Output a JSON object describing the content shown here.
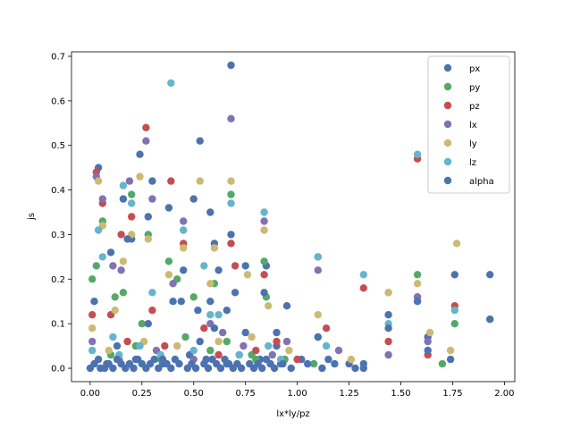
{
  "chart_data": {
    "type": "scatter",
    "title": "",
    "xlabel": "lx*ly/pz",
    "ylabel": "js",
    "xlim": [
      -0.09,
      2.05
    ],
    "ylim": [
      -0.03,
      0.71
    ],
    "xticks": [
      "0.00",
      "0.25",
      "0.50",
      "0.75",
      "1.00",
      "1.25",
      "1.50",
      "1.75",
      "2.00"
    ],
    "yticks": [
      "0.0",
      "0.1",
      "0.2",
      "0.3",
      "0.4",
      "0.5",
      "0.6",
      "0.7"
    ],
    "grid": false,
    "legend_position": "upper right",
    "series": [
      {
        "name": "px",
        "color": "#4C72B0",
        "points": [
          [
            0.02,
            0.15
          ],
          [
            0.04,
            0.45
          ],
          [
            0.05,
            0.0
          ],
          [
            0.1,
            0.26
          ],
          [
            0.13,
            0.05
          ],
          [
            0.16,
            0.38
          ],
          [
            0.2,
            0.29
          ],
          [
            0.24,
            0.48
          ],
          [
            0.28,
            0.34
          ],
          [
            0.3,
            0.42
          ],
          [
            0.38,
            0.36
          ],
          [
            0.4,
            0.15
          ],
          [
            0.45,
            0.22
          ],
          [
            0.5,
            0.38
          ],
          [
            0.53,
            0.51
          ],
          [
            0.58,
            0.35
          ],
          [
            0.6,
            0.28
          ],
          [
            0.62,
            0.22
          ],
          [
            0.68,
            0.68
          ],
          [
            0.7,
            0.17
          ],
          [
            0.75,
            0.23
          ],
          [
            0.85,
            0.23
          ],
          [
            0.9,
            0.05
          ],
          [
            0.95,
            0.14
          ],
          [
            1.1,
            0.25
          ],
          [
            1.15,
            0.02
          ],
          [
            1.32,
            0.01
          ],
          [
            1.44,
            0.12
          ],
          [
            1.58,
            0.16
          ],
          [
            1.63,
            0.07
          ],
          [
            1.76,
            0.21
          ],
          [
            1.93,
            0.21
          ],
          [
            0.08,
            0.01
          ],
          [
            0.22,
            0.02
          ],
          [
            0.35,
            0.01
          ],
          [
            0.48,
            0.03
          ],
          [
            0.56,
            0.02
          ],
          [
            0.66,
            0.01
          ],
          [
            0.72,
            0.03
          ],
          [
            0.82,
            0.02
          ],
          [
            0.92,
            0.01
          ],
          [
            1.02,
            0.02
          ],
          [
            1.25,
            0.01
          ]
        ]
      },
      {
        "name": "py",
        "color": "#55A868",
        "points": [
          [
            0.01,
            0.2
          ],
          [
            0.03,
            0.23
          ],
          [
            0.06,
            0.33
          ],
          [
            0.12,
            0.16
          ],
          [
            0.16,
            0.17
          ],
          [
            0.2,
            0.39
          ],
          [
            0.25,
            0.1
          ],
          [
            0.28,
            0.3
          ],
          [
            0.38,
            0.24
          ],
          [
            0.42,
            0.2
          ],
          [
            0.5,
            0.16
          ],
          [
            0.6,
            0.19
          ],
          [
            0.68,
            0.39
          ],
          [
            0.78,
            0.03
          ],
          [
            0.84,
            0.24
          ],
          [
            0.85,
            0.16
          ],
          [
            1.1,
            0.07
          ],
          [
            1.44,
            0.17
          ],
          [
            1.58,
            0.21
          ],
          [
            1.7,
            0.01
          ],
          [
            1.76,
            0.1
          ],
          [
            0.1,
            0.03
          ],
          [
            0.22,
            0.05
          ],
          [
            0.34,
            0.02
          ],
          [
            0.46,
            0.07
          ],
          [
            0.58,
            0.04
          ],
          [
            0.66,
            0.06
          ],
          [
            0.8,
            0.02
          ],
          [
            0.94,
            0.02
          ],
          [
            1.08,
            0.01
          ]
        ]
      },
      {
        "name": "pz",
        "color": "#C44E52",
        "points": [
          [
            0.01,
            0.12
          ],
          [
            0.03,
            0.44
          ],
          [
            0.06,
            0.37
          ],
          [
            0.1,
            0.12
          ],
          [
            0.15,
            0.3
          ],
          [
            0.2,
            0.34
          ],
          [
            0.27,
            0.54
          ],
          [
            0.3,
            0.13
          ],
          [
            0.39,
            0.42
          ],
          [
            0.45,
            0.28
          ],
          [
            0.55,
            0.09
          ],
          [
            0.68,
            0.28
          ],
          [
            0.7,
            0.23
          ],
          [
            0.84,
            0.21
          ],
          [
            0.9,
            0.06
          ],
          [
            1.14,
            0.09
          ],
          [
            1.32,
            0.18
          ],
          [
            1.44,
            0.06
          ],
          [
            1.58,
            0.47
          ],
          [
            1.63,
            0.03
          ],
          [
            1.76,
            0.14
          ],
          [
            0.18,
            0.06
          ],
          [
            0.36,
            0.05
          ],
          [
            0.62,
            0.03
          ],
          [
            0.8,
            0.04
          ],
          [
            1.0,
            0.02
          ]
        ]
      },
      {
        "name": "lx",
        "color": "#8172B2",
        "points": [
          [
            0.01,
            0.06
          ],
          [
            0.03,
            0.43
          ],
          [
            0.06,
            0.38
          ],
          [
            0.11,
            0.23
          ],
          [
            0.15,
            0.22
          ],
          [
            0.19,
            0.42
          ],
          [
            0.27,
            0.51
          ],
          [
            0.3,
            0.38
          ],
          [
            0.4,
            0.19
          ],
          [
            0.45,
            0.33
          ],
          [
            0.58,
            0.1
          ],
          [
            0.64,
            0.08
          ],
          [
            0.68,
            0.56
          ],
          [
            0.84,
            0.33
          ],
          [
            0.95,
            0.06
          ],
          [
            1.1,
            0.22
          ],
          [
            1.2,
            0.04
          ],
          [
            1.44,
            0.03
          ],
          [
            1.58,
            0.16
          ],
          [
            1.63,
            0.06
          ],
          [
            0.14,
            0.02
          ],
          [
            0.32,
            0.04
          ],
          [
            0.5,
            0.02
          ],
          [
            0.74,
            0.05
          ],
          [
            0.88,
            0.03
          ]
        ]
      },
      {
        "name": "ly",
        "color": "#CCB974",
        "points": [
          [
            0.01,
            0.09
          ],
          [
            0.04,
            0.42
          ],
          [
            0.06,
            0.32
          ],
          [
            0.12,
            0.13
          ],
          [
            0.16,
            0.24
          ],
          [
            0.2,
            0.3
          ],
          [
            0.24,
            0.43
          ],
          [
            0.28,
            0.29
          ],
          [
            0.38,
            0.21
          ],
          [
            0.45,
            0.27
          ],
          [
            0.53,
            0.42
          ],
          [
            0.58,
            0.19
          ],
          [
            0.6,
            0.27
          ],
          [
            0.68,
            0.42
          ],
          [
            0.76,
            0.21
          ],
          [
            0.84,
            0.31
          ],
          [
            0.86,
            0.14
          ],
          [
            1.1,
            0.12
          ],
          [
            1.26,
            0.02
          ],
          [
            1.44,
            0.17
          ],
          [
            1.58,
            0.19
          ],
          [
            1.64,
            0.08
          ],
          [
            1.74,
            0.04
          ],
          [
            1.77,
            0.28
          ],
          [
            1.93,
            0.11
          ],
          [
            0.09,
            0.04
          ],
          [
            0.26,
            0.06
          ],
          [
            0.42,
            0.05
          ],
          [
            0.62,
            0.06
          ],
          [
            0.78,
            0.07
          ],
          [
            0.96,
            0.04
          ]
        ]
      },
      {
        "name": "lz",
        "color": "#64B5CD",
        "points": [
          [
            0.01,
            0.04
          ],
          [
            0.04,
            0.31
          ],
          [
            0.06,
            0.25
          ],
          [
            0.11,
            0.07
          ],
          [
            0.16,
            0.41
          ],
          [
            0.2,
            0.37
          ],
          [
            0.24,
            0.05
          ],
          [
            0.3,
            0.17
          ],
          [
            0.39,
            0.64
          ],
          [
            0.45,
            0.31
          ],
          [
            0.55,
            0.23
          ],
          [
            0.58,
            0.12
          ],
          [
            0.62,
            0.12
          ],
          [
            0.68,
            0.37
          ],
          [
            0.84,
            0.35
          ],
          [
            0.86,
            0.05
          ],
          [
            1.1,
            0.25
          ],
          [
            1.14,
            0.05
          ],
          [
            1.32,
            0.21
          ],
          [
            1.44,
            0.1
          ],
          [
            1.58,
            0.48
          ],
          [
            1.76,
            0.13
          ],
          [
            0.14,
            0.03
          ],
          [
            0.34,
            0.03
          ],
          [
            0.5,
            0.04
          ],
          [
            0.72,
            0.03
          ],
          [
            0.92,
            0.02
          ]
        ]
      },
      {
        "name": "alpha",
        "color": "#4C72B0",
        "points": [
          [
            0.0,
            0.0
          ],
          [
            0.02,
            0.01
          ],
          [
            0.04,
            0.02
          ],
          [
            0.07,
            0.0
          ],
          [
            0.09,
            0.01
          ],
          [
            0.11,
            0.0
          ],
          [
            0.13,
            0.02
          ],
          [
            0.15,
            0.01
          ],
          [
            0.17,
            0.0
          ],
          [
            0.19,
            0.01
          ],
          [
            0.21,
            0.0
          ],
          [
            0.23,
            0.02
          ],
          [
            0.25,
            0.01
          ],
          [
            0.27,
            0.0
          ],
          [
            0.29,
            0.01
          ],
          [
            0.31,
            0.02
          ],
          [
            0.33,
            0.0
          ],
          [
            0.37,
            0.01
          ],
          [
            0.39,
            0.0
          ],
          [
            0.41,
            0.02
          ],
          [
            0.43,
            0.01
          ],
          [
            0.47,
            0.0
          ],
          [
            0.49,
            0.01
          ],
          [
            0.51,
            0.0
          ],
          [
            0.55,
            0.01
          ],
          [
            0.57,
            0.0
          ],
          [
            0.59,
            0.02
          ],
          [
            0.61,
            0.01
          ],
          [
            0.63,
            0.0
          ],
          [
            0.65,
            0.02
          ],
          [
            0.67,
            0.01
          ],
          [
            0.69,
            0.0
          ],
          [
            0.71,
            0.01
          ],
          [
            0.73,
            0.0
          ],
          [
            0.77,
            0.01
          ],
          [
            0.79,
            0.0
          ],
          [
            0.81,
            0.01
          ],
          [
            0.83,
            0.0
          ],
          [
            0.85,
            0.02
          ],
          [
            0.87,
            0.01
          ],
          [
            0.89,
            0.0
          ],
          [
            0.93,
            0.01
          ],
          [
            0.97,
            0.0
          ],
          [
            1.05,
            0.01
          ],
          [
            1.12,
            0.0
          ],
          [
            1.18,
            0.01
          ],
          [
            1.28,
            0.0
          ],
          [
            1.32,
            0.0
          ],
          [
            1.44,
            0.09
          ],
          [
            1.58,
            0.15
          ],
          [
            1.63,
            0.04
          ],
          [
            1.74,
            0.02
          ],
          [
            1.93,
            0.11
          ],
          [
            0.18,
            0.29
          ],
          [
            0.28,
            0.1
          ],
          [
            0.44,
            0.15
          ],
          [
            0.52,
            0.13
          ],
          [
            0.58,
            0.15
          ],
          [
            0.6,
            0.09
          ],
          [
            0.66,
            0.13
          ],
          [
            0.68,
            0.3
          ],
          [
            0.84,
            0.17
          ],
          [
            0.9,
            0.08
          ],
          [
            1.1,
            0.07
          ],
          [
            0.35,
            0.02
          ],
          [
            0.53,
            0.06
          ],
          [
            0.75,
            0.08
          ]
        ]
      }
    ]
  }
}
